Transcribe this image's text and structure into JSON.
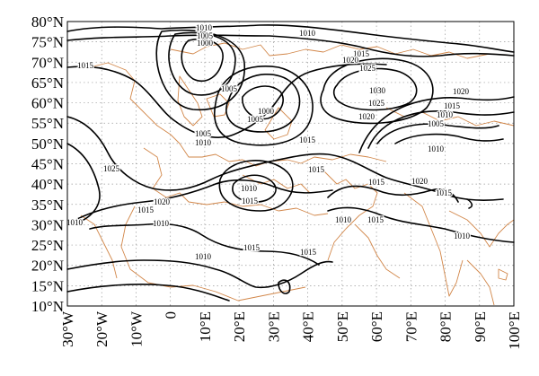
{
  "map": {
    "lat_labels": [
      "80°N",
      "75°N",
      "70°N",
      "65°N",
      "60°N",
      "55°N",
      "50°N",
      "45°N",
      "40°N",
      "35°N",
      "30°N",
      "25°N",
      "20°N",
      "15°N",
      "10°N"
    ],
    "lon_labels": [
      "30°W",
      "20°W",
      "10°W",
      "0",
      "10°E",
      "20°E",
      "30°E",
      "40°E",
      "50°E",
      "60°E",
      "70°E",
      "80°E",
      "90°E",
      "100°E"
    ],
    "contour_labels": [
      "1010",
      "1005",
      "1000",
      "1010",
      "1015",
      "1020",
      "1025",
      "1015",
      "1005",
      "1000",
      "1005",
      "1030",
      "1025",
      "1020",
      "1020",
      "1015",
      "1010",
      "1005",
      "1010",
      "1005",
      "1010",
      "1015",
      "1025",
      "1015",
      "1010",
      "1015",
      "1015",
      "1020",
      "1015",
      "1020",
      "1010",
      "1015",
      "1010",
      "1015",
      "1010",
      "1015",
      "1010",
      "1015",
      "1010"
    ],
    "colors": {
      "contour": "#000000",
      "coastline": "#d2874a",
      "grid": "#9a9a9a",
      "background": "#ffffff"
    }
  }
}
